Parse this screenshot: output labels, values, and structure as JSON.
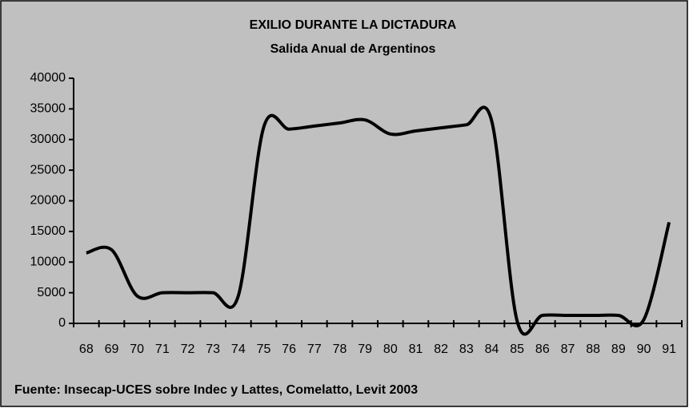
{
  "chart_data": {
    "type": "line",
    "title": "EXILIO DURANTE LA DICTADURA",
    "subtitle": "Salida Anual de Argentinos",
    "source": "Fuente: Insecap-UCES sobre Indec y Lattes, Comelatto, Levit 2003",
    "categories": [
      "68",
      "69",
      "70",
      "71",
      "72",
      "73",
      "74",
      "75",
      "76",
      "77",
      "78",
      "79",
      "80",
      "81",
      "82",
      "83",
      "84",
      "85",
      "86",
      "87",
      "88",
      "89",
      "90",
      "91"
    ],
    "series": [
      {
        "name": "Salida Anual",
        "color": "#000000",
        "values": [
          11500,
          12000,
          4500,
          5000,
          5000,
          5000,
          4500,
          32000,
          31700,
          32200,
          32700,
          33200,
          30900,
          31400,
          31900,
          32400,
          33000,
          400,
          1300,
          1300,
          1300,
          1300,
          600,
          16500
        ]
      }
    ],
    "ylim": [
      0,
      40000
    ],
    "yticks": [
      0,
      5000,
      10000,
      15000,
      20000,
      25000,
      30000,
      35000,
      40000
    ],
    "smooth": true
  }
}
